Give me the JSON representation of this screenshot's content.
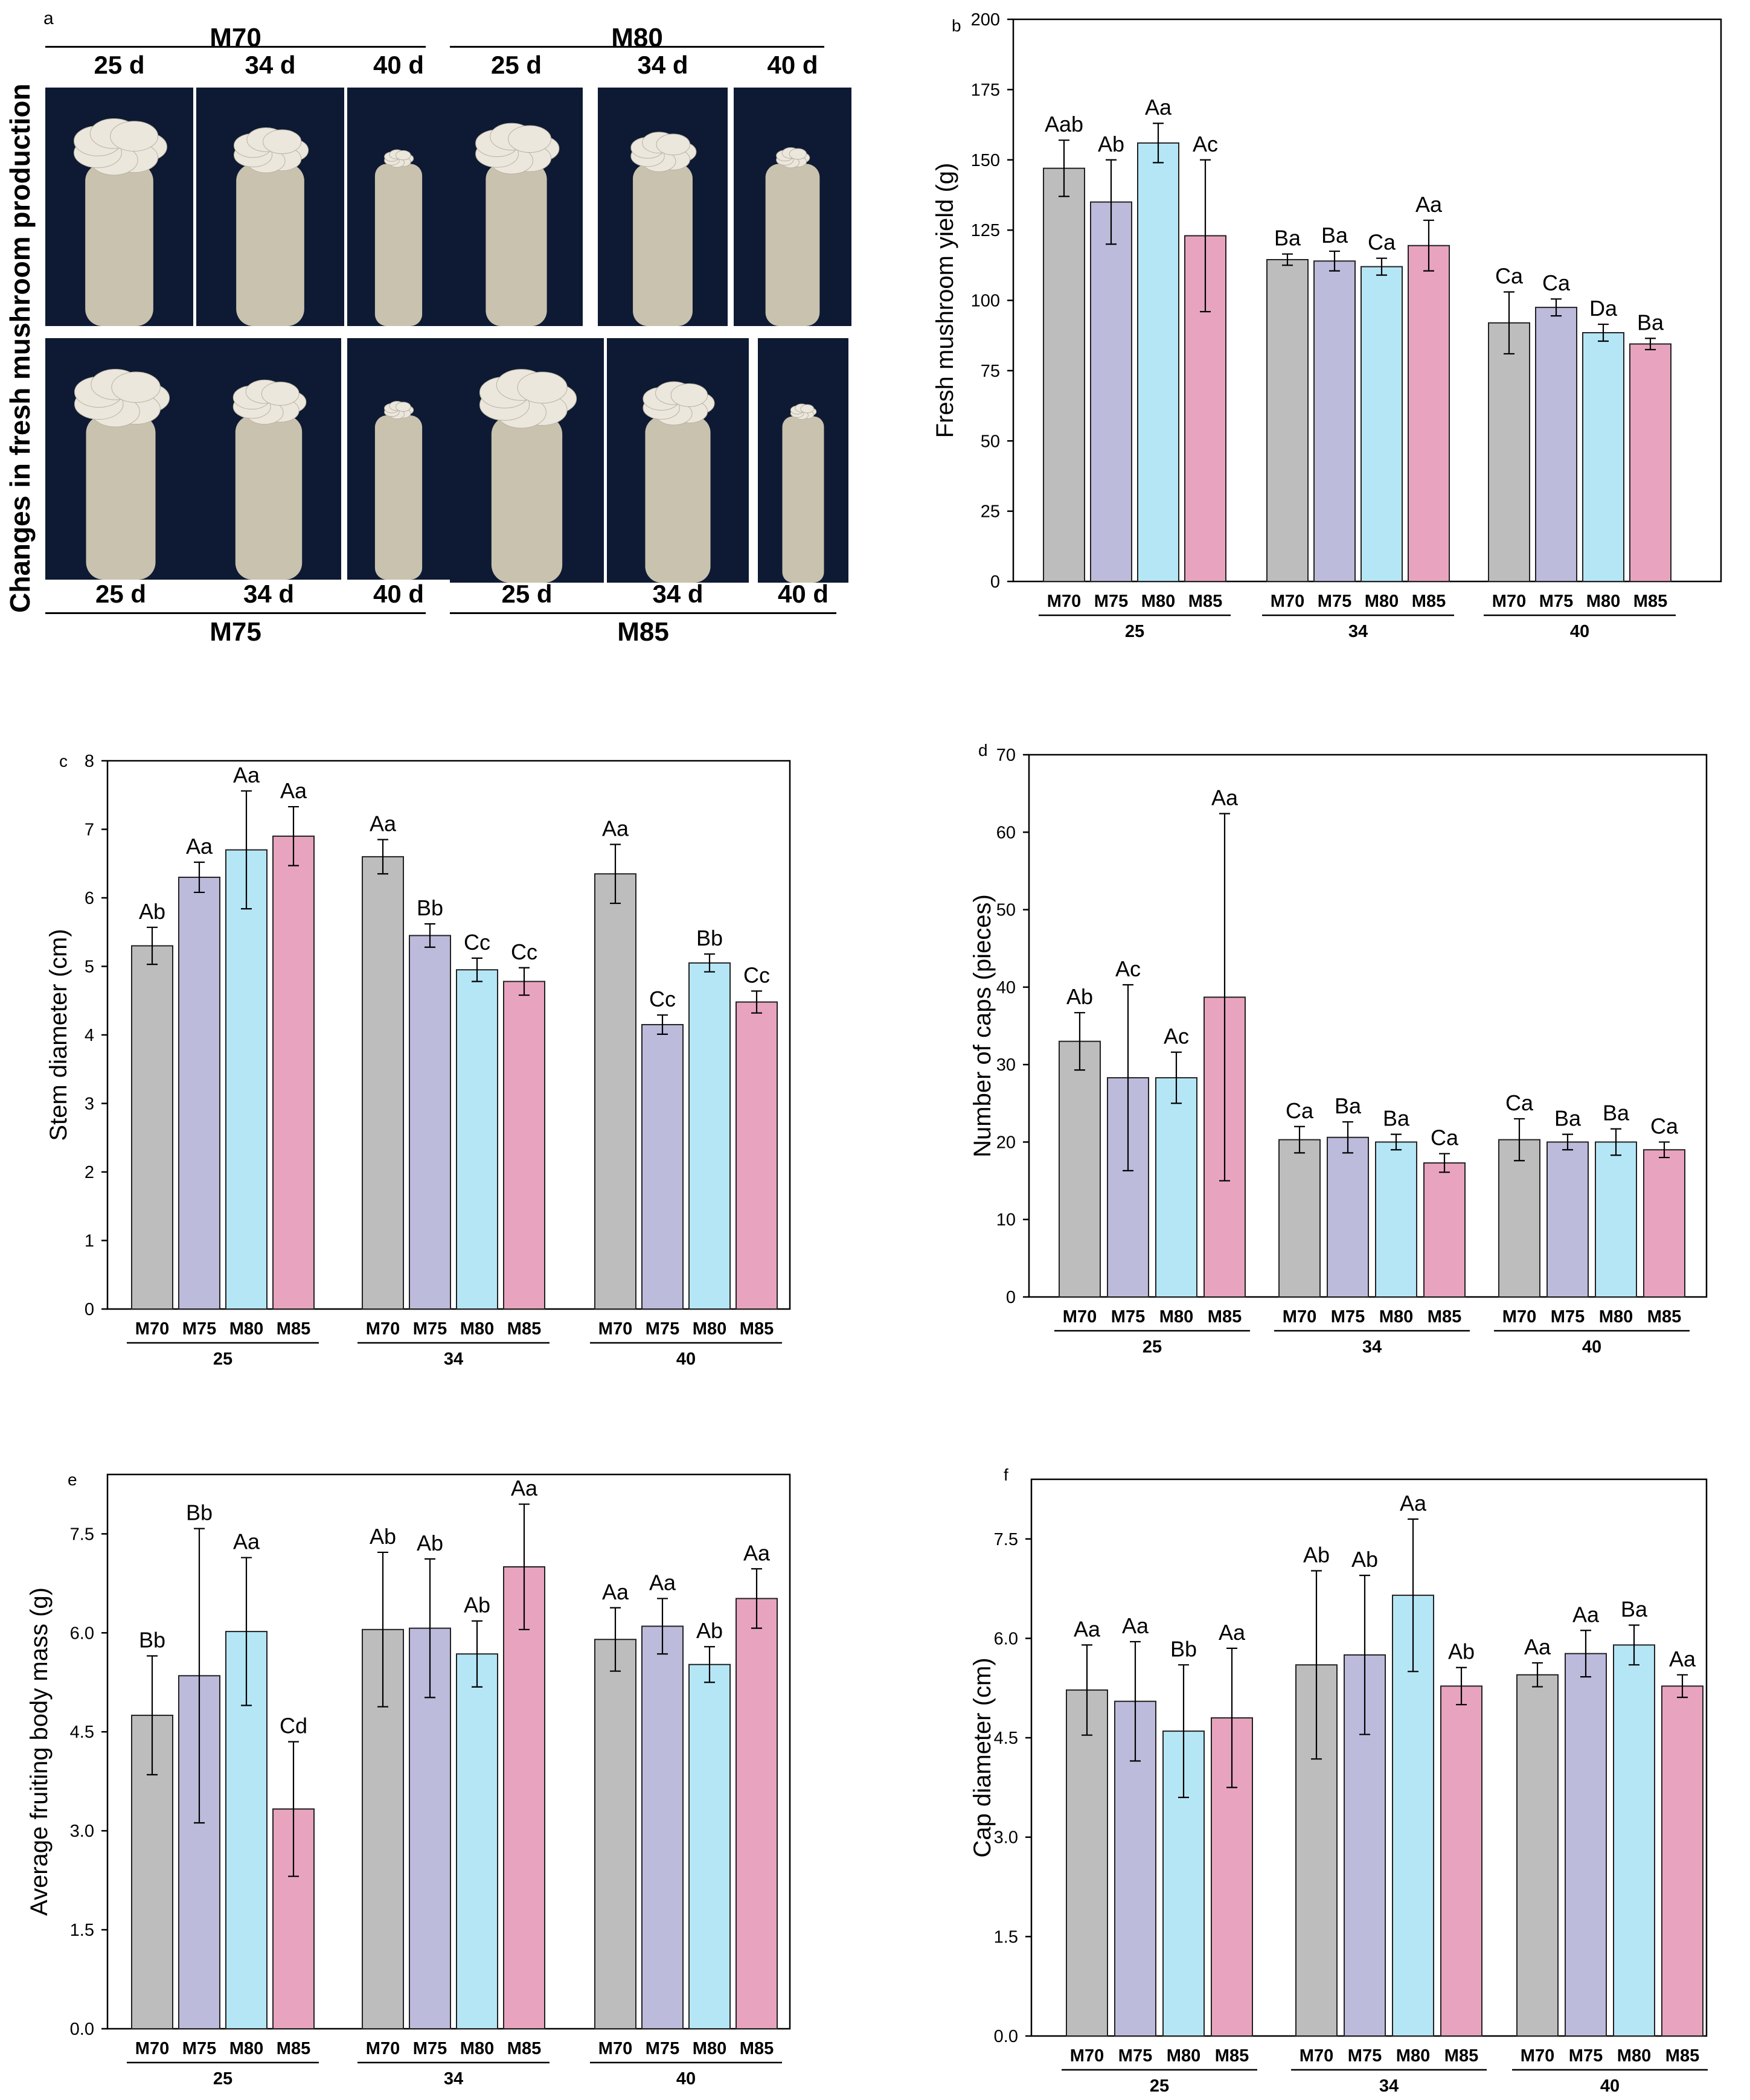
{
  "photos": {
    "label": "a",
    "side_title": "Changes in fresh mushroom production",
    "groups": [
      {
        "name": "M70",
        "days": [
          "25 d",
          "34 d",
          "40 d"
        ]
      },
      {
        "name": "M80",
        "days": [
          "25 d",
          "34 d",
          "40 d"
        ]
      },
      {
        "name": "M75",
        "days": [
          "25 d",
          "34 d",
          "40 d"
        ]
      },
      {
        "name": "M85",
        "days": [
          "25 d",
          "34 d",
          "40 d"
        ]
      }
    ],
    "colors": {
      "background": "#0e1a33",
      "bag": "#c9c2ae",
      "mushroom": "#ece7dc"
    }
  },
  "colors": {
    "M70": "#bdbdbd",
    "M75": "#bdbbdc",
    "M80": "#b5e6f6",
    "M85": "#e8a4be"
  },
  "chart_data": [
    {
      "panel": "b",
      "type": "bar",
      "ylabel": "Fresh mushroom yield (g)",
      "ylim": [
        0,
        200
      ],
      "yticks": [
        0,
        25,
        50,
        75,
        100,
        125,
        150,
        175,
        200
      ],
      "ytick_labels": [
        "0",
        "25",
        "50",
        "75",
        "100",
        "125",
        "150",
        "175",
        "200"
      ],
      "groups": [
        "25",
        "34",
        "40"
      ],
      "categories": [
        "M70",
        "M75",
        "M80",
        "M85"
      ],
      "series": [
        {
          "group": "25",
          "values": [
            147,
            135,
            156,
            123
          ],
          "errors": [
            10,
            15,
            7,
            27
          ],
          "labels": [
            "Aab",
            "Ab",
            "Aa",
            "Ac"
          ]
        },
        {
          "group": "34",
          "values": [
            114.5,
            114,
            112,
            119.5
          ],
          "errors": [
            2,
            3.5,
            3,
            9
          ],
          "labels": [
            "Ba",
            "Ba",
            "Ca",
            "Aa"
          ]
        },
        {
          "group": "40",
          "values": [
            92,
            97.5,
            88.5,
            84.5
          ],
          "errors": [
            11,
            3,
            3,
            2
          ],
          "labels": [
            "Ca",
            "Ca",
            "Da",
            "Ba"
          ]
        }
      ]
    },
    {
      "panel": "c",
      "type": "bar",
      "ylabel": "Stem diameter (cm)",
      "ylim": [
        0,
        8
      ],
      "yticks": [
        0,
        1,
        2,
        3,
        4,
        5,
        6,
        7,
        8
      ],
      "ytick_labels": [
        "0",
        "1",
        "2",
        "3",
        "4",
        "5",
        "6",
        "7",
        "8"
      ],
      "groups": [
        "25",
        "34",
        "40"
      ],
      "categories": [
        "M70",
        "M75",
        "M80",
        "M85"
      ],
      "series": [
        {
          "group": "25",
          "values": [
            5.3,
            6.3,
            6.7,
            6.9
          ],
          "errors": [
            0.27,
            0.22,
            0.86,
            0.43
          ],
          "labels": [
            "Ab",
            "Aa",
            "Aa",
            "Aa"
          ]
        },
        {
          "group": "34",
          "values": [
            6.6,
            5.45,
            4.95,
            4.78
          ],
          "errors": [
            0.25,
            0.17,
            0.17,
            0.2
          ],
          "labels": [
            "Aa",
            "Bb",
            "Cc",
            "Cc"
          ]
        },
        {
          "group": "40",
          "values": [
            6.35,
            4.15,
            5.05,
            4.48
          ],
          "errors": [
            0.43,
            0.14,
            0.13,
            0.16
          ],
          "labels": [
            "Aa",
            "Cc",
            "Bb",
            "Cc"
          ]
        }
      ]
    },
    {
      "panel": "d",
      "type": "bar",
      "ylabel": "Number of caps (pieces)",
      "ylim": [
        0,
        70
      ],
      "yticks": [
        0,
        10,
        20,
        30,
        40,
        50,
        60,
        70
      ],
      "ytick_labels": [
        "0",
        "10",
        "20",
        "30",
        "40",
        "50",
        "60",
        "70"
      ],
      "groups": [
        "25",
        "34",
        "40"
      ],
      "categories": [
        "M70",
        "M75",
        "M80",
        "M85"
      ],
      "series": [
        {
          "group": "25",
          "values": [
            33,
            28.3,
            28.3,
            38.7
          ],
          "errors": [
            3.7,
            12,
            3.3,
            23.7
          ],
          "labels": [
            "Ab",
            "Ac",
            "Ac",
            "Aa"
          ]
        },
        {
          "group": "34",
          "values": [
            20.3,
            20.6,
            20,
            17.3
          ],
          "errors": [
            1.7,
            2,
            1,
            1.2
          ],
          "labels": [
            "Ca",
            "Ba",
            "Ba",
            "Ca"
          ]
        },
        {
          "group": "40",
          "values": [
            20.3,
            20,
            20,
            19
          ],
          "errors": [
            2.7,
            1,
            1.7,
            1
          ],
          "labels": [
            "Ca",
            "Ba",
            "Ba",
            "Ca"
          ]
        }
      ]
    },
    {
      "panel": "e",
      "type": "bar",
      "ylabel": "Average fruiting body mass (g)",
      "ylim": [
        0,
        8.4
      ],
      "yticks": [
        0,
        1.5,
        3,
        4.5,
        6,
        7.5
      ],
      "ytick_labels": [
        "0.0",
        "1.5",
        "3.0",
        "4.5",
        "6.0",
        "7.5"
      ],
      "groups": [
        "25",
        "34",
        "40"
      ],
      "categories": [
        "M70",
        "M75",
        "M80",
        "M85"
      ],
      "series": [
        {
          "group": "25",
          "values": [
            4.75,
            5.35,
            6.02,
            3.33
          ],
          "errors": [
            0.9,
            2.23,
            1.12,
            1.02
          ],
          "labels": [
            "Bb",
            "Bb",
            "Aa",
            "Cd"
          ]
        },
        {
          "group": "34",
          "values": [
            6.05,
            6.07,
            5.68,
            7.0
          ],
          "errors": [
            1.17,
            1.05,
            0.5,
            0.95
          ],
          "labels": [
            "Ab",
            "Ab",
            "Ab",
            "Aa"
          ]
        },
        {
          "group": "40",
          "values": [
            5.9,
            6.1,
            5.52,
            6.52
          ],
          "errors": [
            0.48,
            0.42,
            0.27,
            0.45
          ],
          "labels": [
            "Aa",
            "Aa",
            "Ab",
            "Aa"
          ]
        }
      ]
    },
    {
      "panel": "f",
      "type": "bar",
      "ylabel": "Cap diameter (cm)",
      "ylim": [
        0,
        8.4
      ],
      "yticks": [
        0,
        1.5,
        3,
        4.5,
        6,
        7.5
      ],
      "ytick_labels": [
        "0.0",
        "1.5",
        "3.0",
        "4.5",
        "6.0",
        "7.5"
      ],
      "groups": [
        "25",
        "34",
        "40"
      ],
      "categories": [
        "M70",
        "M75",
        "M80",
        "M85"
      ],
      "series": [
        {
          "group": "25",
          "values": [
            5.22,
            5.05,
            4.6,
            4.8
          ],
          "errors": [
            0.68,
            0.9,
            1.0,
            1.05
          ],
          "labels": [
            "Aa",
            "Aa",
            "Bb",
            "Aa"
          ]
        },
        {
          "group": "34",
          "values": [
            5.6,
            5.75,
            6.65,
            5.28
          ],
          "errors": [
            1.42,
            1.2,
            1.15,
            0.28
          ],
          "labels": [
            "Ab",
            "Ab",
            "Aa",
            "Ab"
          ]
        },
        {
          "group": "40",
          "values": [
            5.45,
            5.77,
            5.9,
            5.28
          ],
          "errors": [
            0.18,
            0.35,
            0.3,
            0.17
          ],
          "labels": [
            "Aa",
            "Aa",
            "Ba",
            "Aa"
          ]
        }
      ]
    }
  ]
}
